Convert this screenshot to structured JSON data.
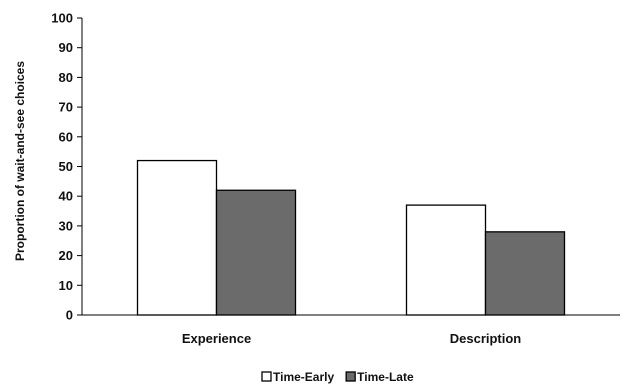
{
  "chart_data": {
    "type": "bar",
    "categories": [
      "Experience",
      "Description"
    ],
    "series": [
      {
        "name": "Time-Early",
        "values": [
          52,
          37
        ],
        "color": "#ffffff"
      },
      {
        "name": "Time-Late",
        "values": [
          42,
          28
        ],
        "color": "#6b6b6b"
      }
    ],
    "ylabel": "Proportion of wait-and-see choices",
    "ylim": [
      0,
      100
    ],
    "yticks": [
      0,
      10,
      20,
      30,
      40,
      50,
      60,
      70,
      80,
      90,
      100
    ],
    "grid": false,
    "legend_position": "bottom"
  }
}
